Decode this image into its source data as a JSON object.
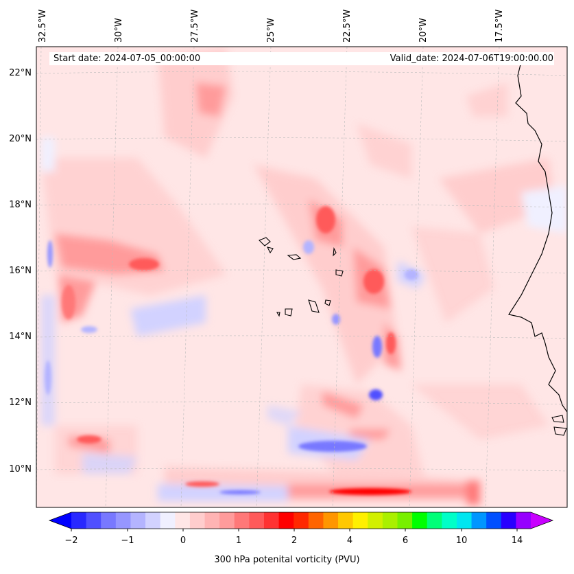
{
  "header": {
    "start_date": "Start date: 2024-07-05_00:00:00",
    "valid_date": "Valid_date: 2024-07-06T19:00:00.00"
  },
  "lon_labels": [
    "32.5°W",
    "30°W",
    "27.5°W",
    "25°W",
    "22.5°W",
    "20°W",
    "17.5°W"
  ],
  "lat_labels": [
    "22°N",
    "20°N",
    "18°N",
    "16°N",
    "14°N",
    "12°N",
    "10°N"
  ],
  "colorbar": {
    "title": "300 hPa potenital vorticity (PVU)",
    "tick_labels": [
      "−2",
      "−1",
      "0",
      "1",
      "2",
      "4",
      "6",
      "10",
      "14"
    ],
    "colors": [
      "#0000ff",
      "#2828ff",
      "#5050ff",
      "#7878ff",
      "#9696ff",
      "#b4b4ff",
      "#d2d2ff",
      "#f0f0ff",
      "#ffe6e6",
      "#ffcdcd",
      "#ffb4b4",
      "#ff9b9b",
      "#ff7878",
      "#ff5a5a",
      "#ff3232",
      "#ff0000",
      "#ff2800",
      "#ff6400",
      "#ff9600",
      "#ffc800",
      "#fff000",
      "#d2f000",
      "#aaf000",
      "#78f000",
      "#00ff00",
      "#00ff78",
      "#00ffc8",
      "#00e6f0",
      "#0096ff",
      "#0050ff",
      "#2800ff",
      "#9600ff",
      "#c800ff"
    ]
  },
  "colors": {
    "background_field": "#ffe6e6",
    "negative": "#b4b4ff",
    "positive": "#ff7878"
  }
}
